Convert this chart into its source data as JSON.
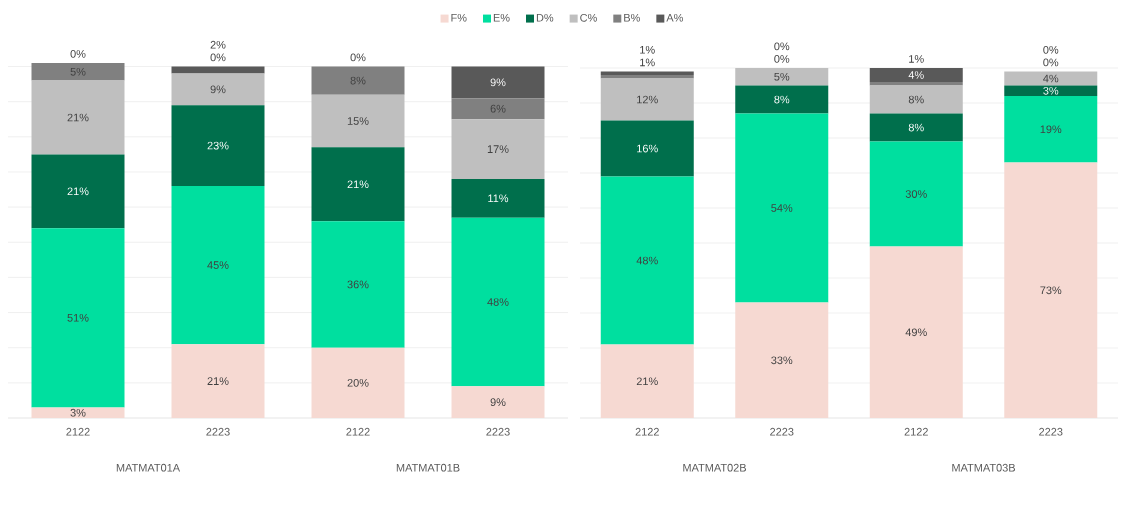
{
  "chart_data": [
    {
      "type": "bar",
      "stacked": true,
      "categories": [
        "2122",
        "2223",
        "2122",
        "2223"
      ],
      "tick_labels": "x",
      "grid": "y",
      "legend": "top",
      "annotations": [
        "MATMAT01A",
        "MATMAT01B"
      ],
      "series": [
        {
          "name": "F%",
          "color": "#f6d9d2",
          "values": [
            3,
            21,
            20,
            9
          ],
          "value_labels": [
            "3%",
            "21%",
            "20%",
            "9%"
          ]
        },
        {
          "name": "E%",
          "color": "#00df9f",
          "values": [
            51,
            45,
            36,
            48
          ],
          "value_labels": [
            "51%",
            "45%",
            "36%",
            "48%"
          ]
        },
        {
          "name": "D%",
          "color": "#006f4c",
          "values": [
            21,
            23,
            21,
            11
          ],
          "value_labels": [
            "21%",
            "23%",
            "21%",
            "11%"
          ]
        },
        {
          "name": "C%",
          "color": "#bfbfbf",
          "values": [
            21,
            9,
            15,
            17
          ],
          "value_labels": [
            "21%",
            "9%",
            "15%",
            "17%"
          ]
        },
        {
          "name": "B%",
          "color": "#808080",
          "values": [
            5,
            0,
            8,
            6
          ],
          "value_labels": [
            "5%",
            "0%",
            "8%",
            "6%"
          ]
        },
        {
          "name": "A%",
          "color": "#595959",
          "values": [
            0,
            2,
            0,
            9
          ],
          "value_labels": [
            "0%",
            "2%",
            "0%",
            "9%"
          ]
        }
      ]
    },
    {
      "type": "bar",
      "stacked": true,
      "categories": [
        "2122",
        "2223",
        "2122",
        "2223"
      ],
      "tick_labels": "x",
      "grid": "y",
      "annotations": [
        "MATMAT02B",
        "MATMAT03B"
      ],
      "series": [
        {
          "color": "#f6d9d2",
          "values": [
            21,
            33,
            49,
            73
          ],
          "value_labels": [
            "21%",
            "33%",
            "49%",
            "73%"
          ]
        },
        {
          "color": "#00df9f",
          "values": [
            48,
            54,
            30,
            19
          ],
          "value_labels": [
            "48%",
            "54%",
            "30%",
            "19%"
          ]
        },
        {
          "color": "#006f4c",
          "values": [
            16,
            8,
            8,
            3
          ],
          "value_labels": [
            "16%",
            "8%",
            "8%",
            "3%"
          ]
        },
        {
          "color": "#bfbfbf",
          "values": [
            12,
            5,
            8,
            4
          ],
          "value_labels": [
            "12%",
            "5%",
            "8%",
            "4%"
          ]
        },
        {
          "color": "#808080",
          "values": [
            1,
            0,
            1,
            0
          ],
          "value_labels": [
            "1%",
            "0%",
            "1%",
            "0%"
          ]
        },
        {
          "color": "#595959",
          "values": [
            1,
            0,
            4,
            0
          ],
          "value_labels": [
            "1%",
            "0%",
            "4%",
            "0%"
          ]
        }
      ]
    }
  ]
}
